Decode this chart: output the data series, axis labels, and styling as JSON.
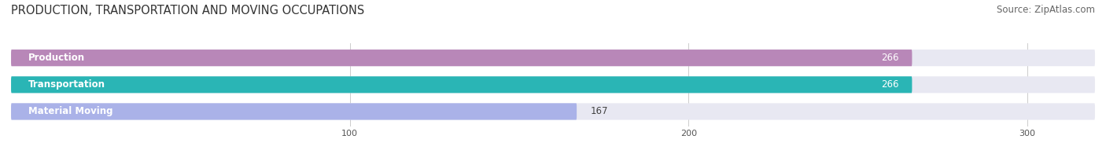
{
  "title": "PRODUCTION, TRANSPORTATION AND MOVING OCCUPATIONS",
  "source": "Source: ZipAtlas.com",
  "categories": [
    "Production",
    "Transportation",
    "Material Moving"
  ],
  "values": [
    266,
    266,
    167
  ],
  "bar_colors": [
    "#b887b8",
    "#2ab5b5",
    "#aab2e8"
  ],
  "bar_bg_color": "#e8e8f2",
  "xlim": [
    0,
    320
  ],
  "xticks": [
    100,
    200,
    300
  ],
  "title_fontsize": 10.5,
  "label_fontsize": 8.5,
  "value_fontsize": 8.5,
  "source_fontsize": 8.5,
  "bar_height": 0.62,
  "background_color": "#ffffff"
}
